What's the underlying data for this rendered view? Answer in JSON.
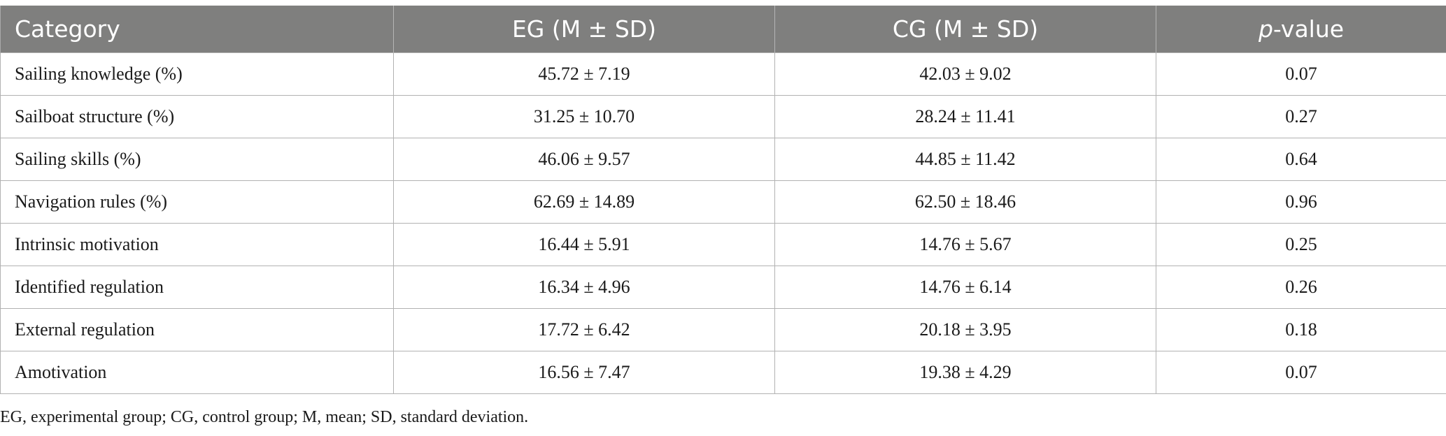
{
  "table": {
    "headers": {
      "category": "Category",
      "eg": "EG (M ± SD)",
      "cg": "CG (M ± SD)",
      "p_italic": "p",
      "p_rest": "-value"
    },
    "rows": [
      {
        "category": "Sailing knowledge (%)",
        "eg": "45.72 ± 7.19",
        "cg": "42.03 ± 9.02",
        "p": "0.07"
      },
      {
        "category": "Sailboat structure (%)",
        "eg": "31.25 ± 10.70",
        "cg": "28.24 ± 11.41",
        "p": "0.27"
      },
      {
        "category": "Sailing skills (%)",
        "eg": "46.06 ± 9.57",
        "cg": "44.85 ± 11.42",
        "p": "0.64"
      },
      {
        "category": "Navigation rules (%)",
        "eg": "62.69 ± 14.89",
        "cg": "62.50 ± 18.46",
        "p": "0.96"
      },
      {
        "category": "Intrinsic motivation",
        "eg": "16.44 ± 5.91",
        "cg": "14.76 ± 5.67",
        "p": "0.25"
      },
      {
        "category": "Identified regulation",
        "eg": "16.34 ± 4.96",
        "cg": "14.76 ± 6.14",
        "p": "0.26"
      },
      {
        "category": "External regulation",
        "eg": "17.72 ± 6.42",
        "cg": "20.18 ± 3.95",
        "p": "0.18"
      },
      {
        "category": "Amotivation",
        "eg": "16.56 ± 7.47",
        "cg": "19.38 ± 4.29",
        "p": "0.07"
      }
    ]
  },
  "footnote": "EG, experimental group; CG, control group; M, mean; SD, standard deviation."
}
